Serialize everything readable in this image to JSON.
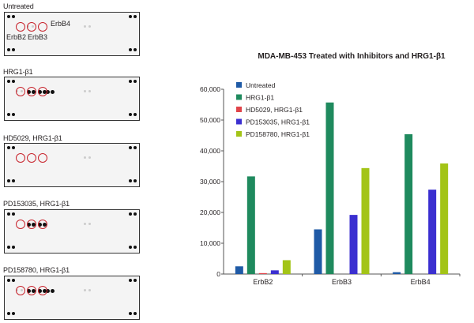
{
  "blots": [
    {
      "label": "Untreated",
      "strong": [],
      "weak": [
        1
      ],
      "annotations": {
        "erbb2": "ErbB2",
        "erbb3": "ErbB3",
        "erbb4": "ErbB4"
      }
    },
    {
      "label": "HRG1-β1",
      "strong": [
        1,
        2,
        3
      ],
      "weak": [
        0
      ]
    },
    {
      "label": "HD5029, HRG1-β1",
      "strong": [],
      "weak": []
    },
    {
      "label": "PD153035, HRG1-β1",
      "strong": [
        1,
        2
      ],
      "weak": []
    },
    {
      "label": "PD158780, HRG1-β1",
      "strong": [
        1,
        2,
        3
      ],
      "weak": [
        0
      ]
    }
  ],
  "chart_data": {
    "type": "bar",
    "title": "MDA-MB-453 Treated with Inhibitors and HRG1-β1",
    "categories": [
      "ErbB2",
      "ErbB3",
      "ErbB4"
    ],
    "series": [
      {
        "name": "Untreated",
        "color": "#1f5aa6",
        "values": [
          2500,
          14500,
          600
        ]
      },
      {
        "name": "HRG1-β1",
        "color": "#1f8a5e",
        "values": [
          31700,
          55700,
          45400
        ]
      },
      {
        "name": "HD5029, HRG1-β1",
        "color": "#e0444a",
        "values": [
          300,
          0,
          0
        ]
      },
      {
        "name": "PD153035, HRG1-β1",
        "color": "#3b2fd0",
        "values": [
          1200,
          19200,
          27400
        ]
      },
      {
        "name": "PD158780, HRG1-β1",
        "color": "#a3c417",
        "values": [
          4500,
          34400,
          35900
        ]
      }
    ],
    "ylim": [
      0,
      60000
    ],
    "yticks": [
      "0",
      "10,000",
      "20,000",
      "30,000",
      "40,000",
      "50,000",
      "60,000"
    ],
    "legend": "top-left",
    "grid": false
  }
}
